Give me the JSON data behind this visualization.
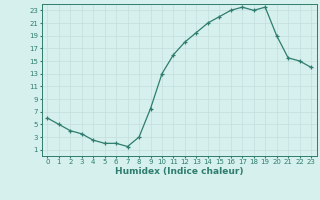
{
  "x": [
    0,
    1,
    2,
    3,
    4,
    5,
    6,
    7,
    8,
    9,
    10,
    11,
    12,
    13,
    14,
    15,
    16,
    17,
    18,
    19,
    20,
    21,
    22,
    23
  ],
  "y": [
    6,
    5,
    4,
    3.5,
    2.5,
    2,
    2,
    1.5,
    3,
    7.5,
    13,
    16,
    18,
    19.5,
    21,
    22,
    23,
    23.5,
    23,
    23.5,
    19,
    15.5,
    15,
    14
  ],
  "line_color": "#2e7d6e",
  "marker_color": "#2e7d6e",
  "bg_color": "#d6f0ee",
  "grid_color": "#c4dedd",
  "xlabel": "Humidex (Indice chaleur)",
  "xlim": [
    -0.5,
    23.5
  ],
  "ylim": [
    0,
    24
  ],
  "yticks": [
    1,
    3,
    5,
    7,
    9,
    11,
    13,
    15,
    17,
    19,
    21,
    23
  ],
  "xticks": [
    0,
    1,
    2,
    3,
    4,
    5,
    6,
    7,
    8,
    9,
    10,
    11,
    12,
    13,
    14,
    15,
    16,
    17,
    18,
    19,
    20,
    21,
    22,
    23
  ],
  "label_fontsize": 6.5,
  "tick_fontsize": 5.0
}
